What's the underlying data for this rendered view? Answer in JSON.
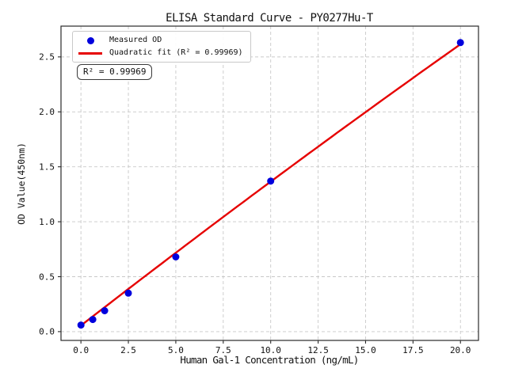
{
  "figure": {
    "kind": "matplotlib-style ELISA standard curve plot"
  },
  "chart_data": {
    "type": "scatter",
    "title": "ELISA Standard Curve - PY0277Hu-T",
    "xlabel": "Human Gal-1 Concentration (ng/mL)",
    "ylabel": "OD Value(450nm)",
    "xlim": [
      -1.05,
      20.95
    ],
    "ylim": [
      -0.08,
      2.78
    ],
    "x_ticks": [
      0,
      2.5,
      5,
      7.5,
      10,
      12.5,
      15,
      17.5,
      20
    ],
    "x_tick_labels": [
      "0.0",
      "2.5",
      "5.0",
      "7.5",
      "10.0",
      "12.5",
      "15.0",
      "17.5",
      "20.0"
    ],
    "y_ticks": [
      0,
      0.5,
      1,
      1.5,
      2,
      2.5
    ],
    "y_tick_labels": [
      "0.0",
      "0.5",
      "1.0",
      "1.5",
      "2.0",
      "2.5"
    ],
    "grid": true,
    "grid_style": "dashed",
    "legend_position": "upper-left",
    "series": [
      {
        "name": "Measured OD",
        "type": "scatter",
        "marker": "circle",
        "color": "#0000dd",
        "x": [
          0,
          0.625,
          1.25,
          2.5,
          5,
          10,
          20
        ],
        "y": [
          0.06,
          0.11,
          0.19,
          0.35,
          0.68,
          1.37,
          2.63
        ]
      },
      {
        "name": "Quadratic fit (R² = 0.99969)",
        "type": "line",
        "color": "#e60000",
        "fit": "quadratic",
        "coeffs": [
          -0.0003,
          0.134,
          0.055
        ],
        "x_range": [
          0,
          20
        ]
      }
    ],
    "annotation": {
      "text": "R² = 0.99969"
    },
    "r_squared": 0.99969,
    "colors": {
      "grid": "#c9c9c9",
      "spine": "#2a2a2a",
      "tick_text": "#111111",
      "background": "#ffffff"
    }
  },
  "legend": {
    "items": [
      {
        "label": "Measured OD",
        "marker": "dot",
        "color": "#0000dd"
      },
      {
        "label": "Quadratic fit (R² = 0.99969)",
        "marker": "line",
        "color": "#e60000"
      }
    ]
  }
}
